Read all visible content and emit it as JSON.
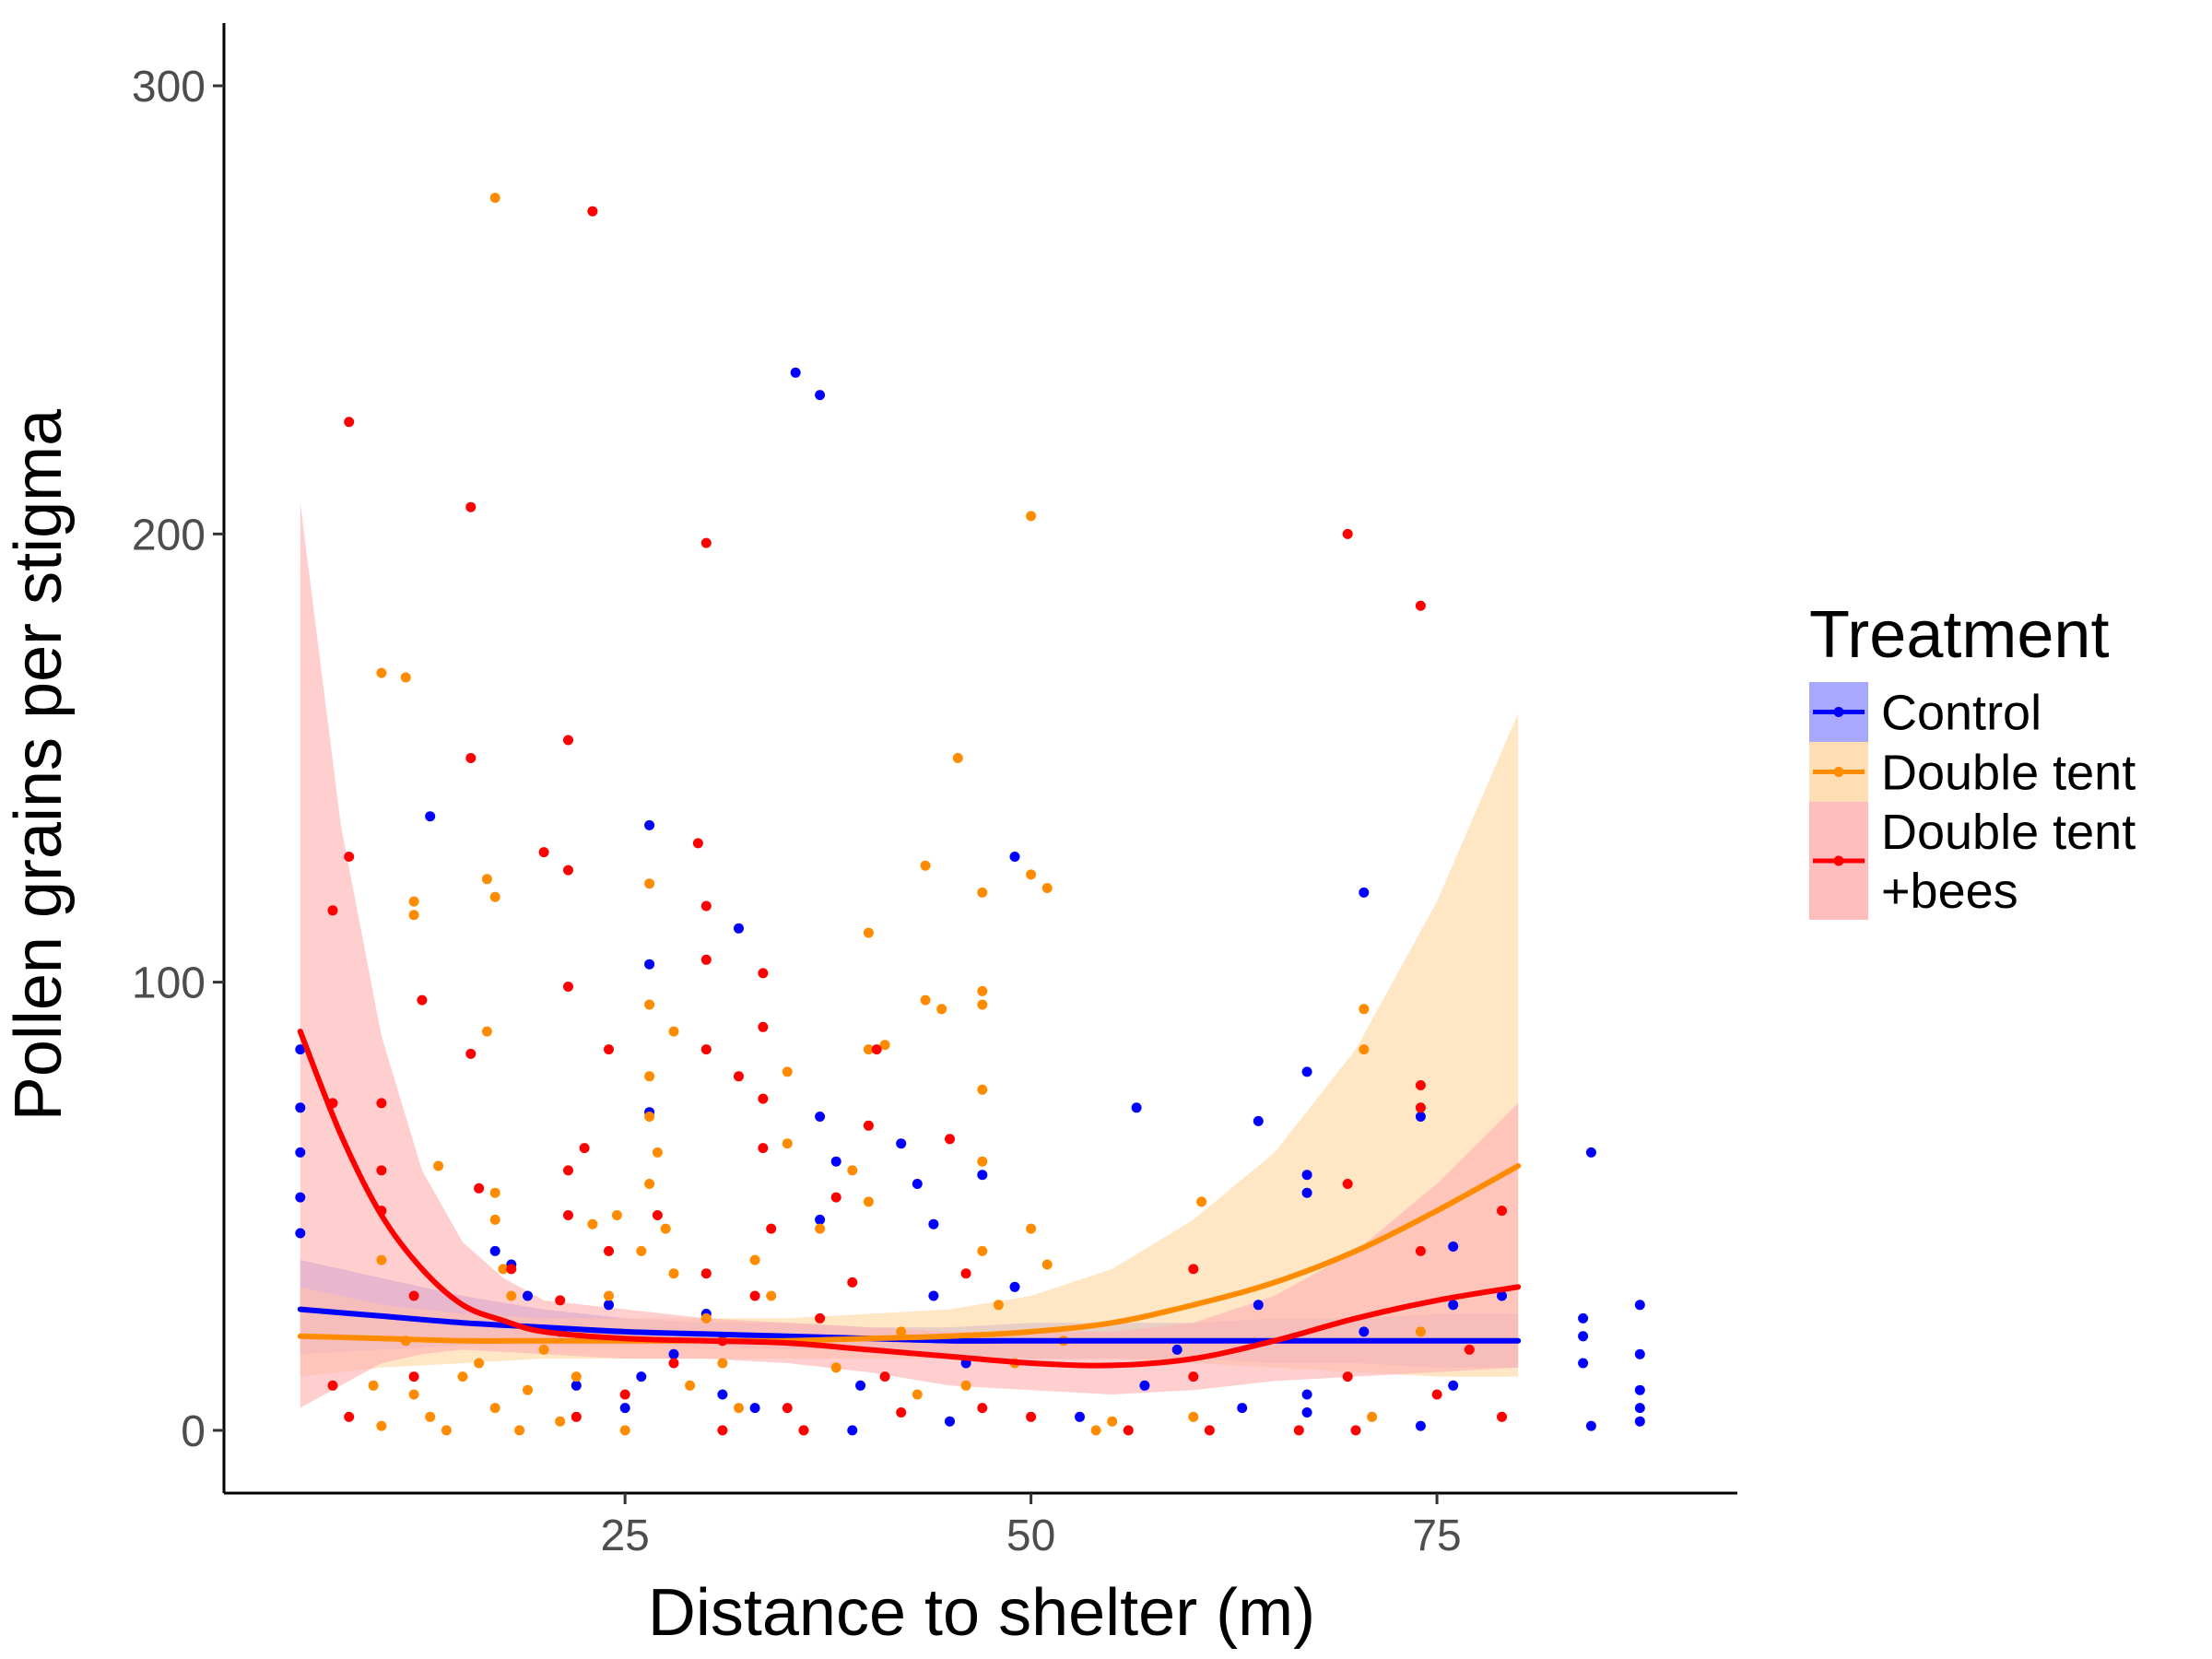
{
  "chart_data": {
    "type": "scatter",
    "xlabel": "Distance to shelter (m)",
    "ylabel": "Pollen grains per stigma",
    "xlim": [
      0.3,
      93.5
    ],
    "ylim": [
      -14,
      314
    ],
    "xticks": [
      25,
      50,
      75
    ],
    "yticks": [
      0,
      100,
      200,
      300
    ],
    "legend": {
      "title": "Treatment",
      "position": "right"
    },
    "series": [
      {
        "name": "Control",
        "color": "#0000ff",
        "band_color": "#9999ff",
        "legend_lines": [
          "Control"
        ],
        "fit": {
          "x": [
            5,
            10,
            15,
            20,
            25,
            30,
            35,
            40,
            45,
            50,
            55,
            60,
            65,
            70,
            75,
            80
          ],
          "y": [
            27,
            25.5,
            24,
            23,
            22,
            21.5,
            21,
            20.5,
            20,
            20,
            20,
            20,
            20,
            20,
            20,
            20
          ],
          "lo": [
            17,
            18,
            19,
            19,
            19,
            19,
            18,
            18,
            17,
            16,
            16,
            16,
            15,
            15,
            14,
            14
          ],
          "hi": [
            38,
            34,
            30,
            27,
            25,
            24,
            24,
            23,
            23,
            24,
            24,
            24,
            25,
            25,
            26,
            26
          ]
        },
        "points": [
          [
            5,
            85
          ],
          [
            5,
            72
          ],
          [
            5,
            62
          ],
          [
            5,
            52
          ],
          [
            5,
            44
          ],
          [
            13,
            137
          ],
          [
            17,
            40
          ],
          [
            18,
            37
          ],
          [
            19,
            30
          ],
          [
            21,
            22
          ],
          [
            22,
            10
          ],
          [
            24,
            28
          ],
          [
            25,
            5
          ],
          [
            26,
            12
          ],
          [
            26.5,
            135
          ],
          [
            26.5,
            104
          ],
          [
            26.5,
            71
          ],
          [
            28,
            17
          ],
          [
            30,
            26
          ],
          [
            31,
            8
          ],
          [
            32,
            112
          ],
          [
            33,
            5
          ],
          [
            35.5,
            236
          ],
          [
            37,
            231
          ],
          [
            37,
            70
          ],
          [
            37,
            47
          ],
          [
            38,
            60
          ],
          [
            39,
            0
          ],
          [
            39.5,
            10
          ],
          [
            42,
            64
          ],
          [
            43,
            55
          ],
          [
            44,
            46
          ],
          [
            44,
            30
          ],
          [
            45,
            2
          ],
          [
            46,
            15
          ],
          [
            47,
            57
          ],
          [
            49,
            128
          ],
          [
            49,
            32
          ],
          [
            53,
            3
          ],
          [
            56.5,
            72
          ],
          [
            57,
            10
          ],
          [
            59,
            18
          ],
          [
            63,
            5
          ],
          [
            64,
            69
          ],
          [
            64,
            28
          ],
          [
            67,
            80
          ],
          [
            67,
            57
          ],
          [
            67,
            53
          ],
          [
            67,
            8
          ],
          [
            67,
            4
          ],
          [
            70.5,
            120
          ],
          [
            70.5,
            22
          ],
          [
            74,
            70
          ],
          [
            74,
            1
          ],
          [
            76,
            41
          ],
          [
            76,
            28
          ],
          [
            76,
            10
          ],
          [
            79,
            30
          ],
          [
            84,
            25
          ],
          [
            84,
            21
          ],
          [
            84,
            15
          ],
          [
            84.5,
            62
          ],
          [
            84.5,
            1
          ],
          [
            87.5,
            28
          ],
          [
            87.5,
            17
          ],
          [
            87.5,
            9
          ],
          [
            87.5,
            5
          ],
          [
            87.5,
            2
          ]
        ]
      },
      {
        "name": "Double tent",
        "color": "#ff8c00",
        "band_color": "#ffd8a6",
        "legend_lines": [
          "Double tent"
        ],
        "fit": {
          "x": [
            5,
            10,
            15,
            20,
            25,
            30,
            35,
            40,
            45,
            50,
            55,
            60,
            65,
            70,
            75,
            80
          ],
          "y": [
            21,
            20.5,
            20,
            20,
            20,
            20,
            20,
            20.5,
            21,
            22,
            24,
            28,
            33,
            40,
            49,
            59
          ],
          "lo": [
            12,
            14,
            15,
            16,
            16,
            16,
            16,
            16,
            16,
            16,
            16,
            15,
            14,
            13,
            12,
            12
          ],
          "hi": [
            32,
            28,
            26,
            25,
            25,
            25,
            25,
            26,
            27,
            30,
            36,
            47,
            62,
            85,
            118,
            160
          ]
        },
        "points": [
          [
            10,
            169
          ],
          [
            11.5,
            168
          ],
          [
            12,
            118
          ],
          [
            12,
            115
          ],
          [
            13.5,
            59
          ],
          [
            10,
            38
          ],
          [
            9.5,
            10
          ],
          [
            10,
            1
          ],
          [
            11.5,
            20
          ],
          [
            12,
            8
          ],
          [
            13,
            3
          ],
          [
            14,
            0
          ],
          [
            15,
            12
          ],
          [
            16.5,
            123
          ],
          [
            17,
            119
          ],
          [
            17,
            275
          ],
          [
            16.5,
            89
          ],
          [
            17,
            53
          ],
          [
            17,
            47
          ],
          [
            17.5,
            36
          ],
          [
            18,
            30
          ],
          [
            16,
            15
          ],
          [
            17,
            5
          ],
          [
            18.5,
            0
          ],
          [
            19,
            9
          ],
          [
            20,
            18
          ],
          [
            21,
            2
          ],
          [
            22,
            12
          ],
          [
            23,
            46
          ],
          [
            24,
            30
          ],
          [
            24.5,
            48
          ],
          [
            25,
            0
          ],
          [
            26,
            40
          ],
          [
            26.5,
            122
          ],
          [
            26.5,
            95
          ],
          [
            26.5,
            79
          ],
          [
            26.5,
            70
          ],
          [
            26.5,
            55
          ],
          [
            27,
            62
          ],
          [
            27.5,
            45
          ],
          [
            28,
            89
          ],
          [
            28,
            35
          ],
          [
            29,
            10
          ],
          [
            30,
            25
          ],
          [
            31,
            15
          ],
          [
            32,
            5
          ],
          [
            33,
            38
          ],
          [
            34,
            30
          ],
          [
            35,
            80
          ],
          [
            35,
            64
          ],
          [
            36,
            0
          ],
          [
            37,
            45
          ],
          [
            38,
            14
          ],
          [
            39,
            58
          ],
          [
            40,
            111
          ],
          [
            40,
            85
          ],
          [
            40,
            51
          ],
          [
            41,
            86
          ],
          [
            42,
            22
          ],
          [
            43,
            8
          ],
          [
            43.5,
            126
          ],
          [
            43.5,
            96
          ],
          [
            44.5,
            94
          ],
          [
            45.5,
            150
          ],
          [
            46,
            10
          ],
          [
            47,
            120
          ],
          [
            47,
            98
          ],
          [
            47,
            95
          ],
          [
            47,
            76
          ],
          [
            47,
            60
          ],
          [
            47,
            40
          ],
          [
            48,
            28
          ],
          [
            49,
            15
          ],
          [
            50,
            204
          ],
          [
            50,
            124
          ],
          [
            51,
            121
          ],
          [
            50,
            45
          ],
          [
            51,
            37
          ],
          [
            52,
            20
          ],
          [
            54,
            0
          ],
          [
            55,
            2
          ],
          [
            60.5,
            51
          ],
          [
            60,
            3
          ],
          [
            70.5,
            94
          ],
          [
            70.5,
            85
          ],
          [
            71,
            3
          ],
          [
            74,
            22
          ]
        ]
      },
      {
        "name": "Double tent +bees",
        "color": "#ff0000",
        "band_color": "#ffb3b3",
        "legend_lines": [
          "Double tent",
          "+bees"
        ],
        "fit": {
          "x": [
            5,
            7.5,
            10,
            12.5,
            15,
            17.5,
            20,
            25,
            30,
            35,
            40,
            45,
            50,
            55,
            60,
            65,
            70,
            75,
            80
          ],
          "y": [
            89,
            66,
            48,
            36,
            28,
            24.5,
            22,
            20.5,
            20,
            19.5,
            18,
            16.5,
            15,
            14.5,
            16,
            20,
            25,
            29,
            32
          ],
          "lo": [
            5,
            10,
            15,
            17,
            18,
            17.5,
            17,
            16,
            16,
            15,
            13,
            10,
            9,
            8,
            9,
            11,
            12,
            13,
            14
          ],
          "hi": [
            207,
            135,
            88,
            58,
            42,
            34,
            29,
            27,
            25,
            24,
            23,
            22,
            22,
            22,
            24,
            30,
            40,
            55,
            73
          ]
        },
        "points": [
          [
            8,
            225
          ],
          [
            8,
            128
          ],
          [
            7,
            116
          ],
          [
            7,
            73
          ],
          [
            10,
            73
          ],
          [
            10,
            58
          ],
          [
            10,
            49
          ],
          [
            7,
            10
          ],
          [
            8,
            3
          ],
          [
            12.5,
            96
          ],
          [
            12,
            30
          ],
          [
            12,
            12
          ],
          [
            15.5,
            206
          ],
          [
            15.5,
            150
          ],
          [
            15.5,
            84
          ],
          [
            16,
            54
          ],
          [
            18,
            36
          ],
          [
            20,
            129
          ],
          [
            21.5,
            154
          ],
          [
            21.5,
            125
          ],
          [
            21.5,
            99
          ],
          [
            21.5,
            58
          ],
          [
            21.5,
            48
          ],
          [
            22.5,
            63
          ],
          [
            21,
            29
          ],
          [
            22,
            3
          ],
          [
            23,
            272
          ],
          [
            24,
            85
          ],
          [
            24,
            40
          ],
          [
            25,
            8
          ],
          [
            27,
            48
          ],
          [
            28,
            15
          ],
          [
            29.5,
            131
          ],
          [
            30,
            198
          ],
          [
            30,
            117
          ],
          [
            30,
            105
          ],
          [
            30,
            85
          ],
          [
            30,
            35
          ],
          [
            31,
            20
          ],
          [
            31,
            0
          ],
          [
            32,
            79
          ],
          [
            33,
            30
          ],
          [
            33.5,
            102
          ],
          [
            33.5,
            90
          ],
          [
            33.5,
            74
          ],
          [
            33.5,
            63
          ],
          [
            34,
            45
          ],
          [
            35,
            5
          ],
          [
            36,
            0
          ],
          [
            37,
            25
          ],
          [
            38,
            52
          ],
          [
            39,
            33
          ],
          [
            40,
            68
          ],
          [
            40.5,
            85
          ],
          [
            41,
            12
          ],
          [
            42,
            4
          ],
          [
            45,
            65
          ],
          [
            46,
            35
          ],
          [
            47,
            5
          ],
          [
            50,
            3
          ],
          [
            56,
            0
          ],
          [
            60,
            36
          ],
          [
            60,
            12
          ],
          [
            61,
            0
          ],
          [
            66.5,
            0
          ],
          [
            69.5,
            200
          ],
          [
            69.5,
            55
          ],
          [
            69.5,
            12
          ],
          [
            70,
            0
          ],
          [
            74,
            184
          ],
          [
            74,
            77
          ],
          [
            74,
            72
          ],
          [
            74,
            40
          ],
          [
            75,
            8
          ],
          [
            77,
            18
          ],
          [
            79,
            49
          ],
          [
            79,
            3
          ]
        ]
      }
    ]
  }
}
